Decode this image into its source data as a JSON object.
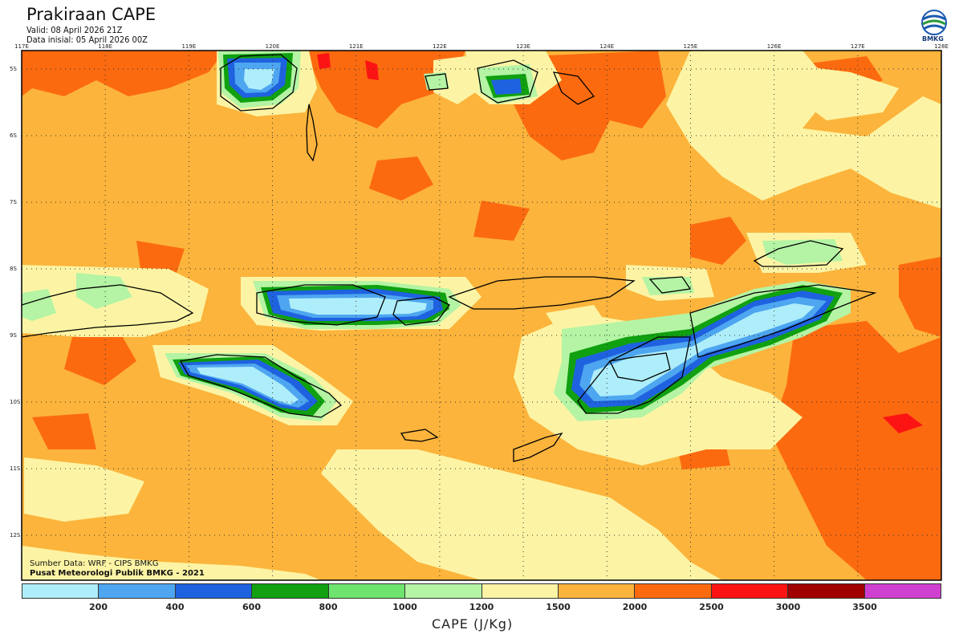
{
  "header": {
    "title": "Prakiraan CAPE",
    "valid": "Valid: 08 April 2026 21Z",
    "init": "Data inisial: 05 April 2026 00Z",
    "logo_text": "BMKG"
  },
  "axes": {
    "lon_ticks": [
      "117E",
      "118E",
      "119E",
      "120E",
      "121E",
      "122E",
      "123E",
      "124E",
      "125E",
      "126E",
      "127E",
      "128E"
    ],
    "lat_ticks": [
      "5S",
      "6S",
      "7S",
      "8S",
      "9S",
      "10S",
      "11S",
      "12S"
    ]
  },
  "credits": {
    "source": "Sumber Data: WRF - CIPS BMKG",
    "org": "Pusat Meteorologi Publik BMKG - 2021"
  },
  "colorbar": {
    "title": "CAPE (J/Kg)",
    "labels": [
      "200",
      "400",
      "600",
      "800",
      "1000",
      "1200",
      "1500",
      "2000",
      "2500",
      "3000",
      "3500"
    ],
    "colors": [
      "#aeeefa",
      "#4ea6f0",
      "#1f62e0",
      "#10a010",
      "#6ee46e",
      "#b4f4a4",
      "#fcf4a4",
      "#fcb43c",
      "#fc6a10",
      "#fc1414",
      "#a00000",
      "#d040d0"
    ]
  },
  "map": {
    "background": "#fcb43c",
    "grid_color": "#333333"
  }
}
